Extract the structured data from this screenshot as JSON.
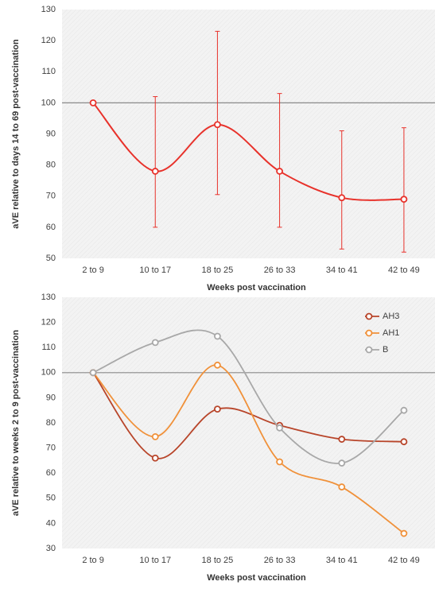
{
  "chart_data": [
    {
      "type": "line",
      "y_label": "aVE relative to days 14 to 69 post-vaccination",
      "x_label": "Weeks post vaccination",
      "categories": [
        "2 to 9",
        "10 to 17",
        "18 to 25",
        "26 to 33",
        "34 to 41",
        "42 to 49"
      ],
      "ylim": [
        50,
        130
      ],
      "yticks": [
        50,
        60,
        70,
        80,
        90,
        100,
        110,
        120,
        130
      ],
      "reference_line": 100,
      "series": [
        {
          "color": "#e8322b",
          "values": [
            100,
            78,
            93,
            78,
            69.5,
            69
          ],
          "lower": [
            null,
            60,
            70.5,
            60,
            53,
            52
          ],
          "upper": [
            null,
            102,
            123,
            103,
            91,
            92
          ]
        }
      ]
    },
    {
      "type": "line",
      "y_label": "aVE relative to weeks 2 to 9 post-vaccination",
      "x_label": "Weeks post vaccination",
      "categories": [
        "2 to 9",
        "10 to 17",
        "18 to 25",
        "26 to 33",
        "34 to 41",
        "42 to 49"
      ],
      "ylim": [
        30,
        130
      ],
      "yticks": [
        30,
        40,
        50,
        60,
        70,
        80,
        90,
        100,
        110,
        120,
        130
      ],
      "reference_line": 100,
      "legend": "top-right",
      "series": [
        {
          "name": "AH3",
          "color": "#b8452a",
          "values": [
            100,
            66,
            85.5,
            79,
            73.5,
            72.5
          ]
        },
        {
          "name": "AH1",
          "color": "#f0913a",
          "values": [
            100,
            74.5,
            103,
            64.5,
            54.5,
            36
          ]
        },
        {
          "name": "B",
          "color": "#a8a8a8",
          "values": [
            100,
            112,
            114.5,
            78,
            64,
            85
          ]
        }
      ]
    }
  ]
}
